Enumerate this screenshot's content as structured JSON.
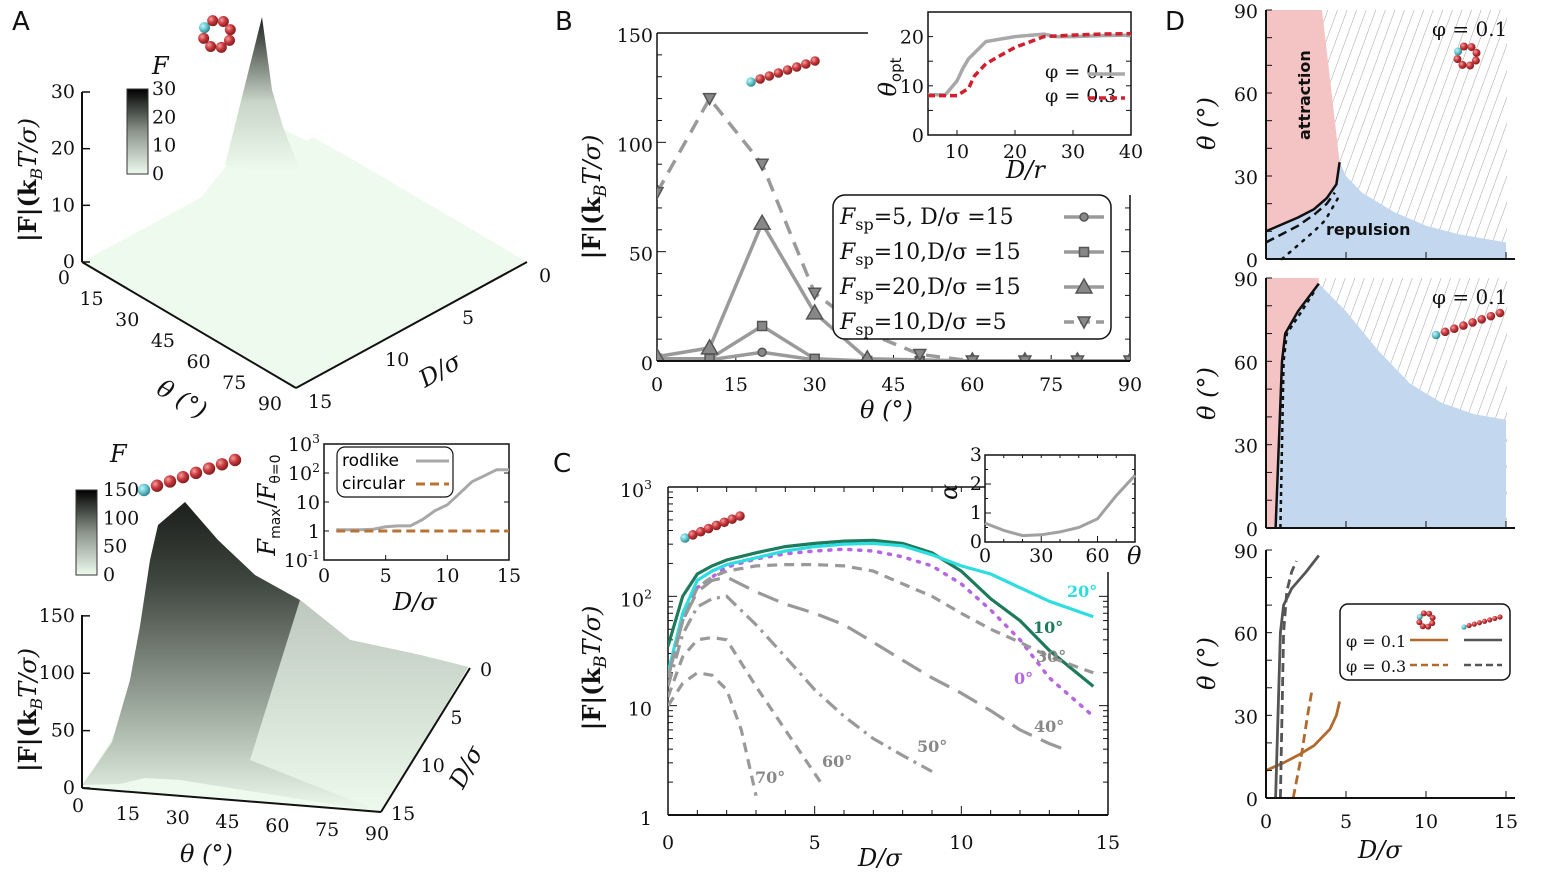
{
  "figure": {
    "panels": [
      "A",
      "B",
      "C",
      "D"
    ]
  },
  "chart_data": [
    {
      "id": "A-top",
      "type": "surface3d",
      "structure": "circular",
      "zlabel": "|F|(k_BT/σ)",
      "xlabel": "θ (°)",
      "ylabel": "D/σ",
      "x_ticks": [
        "0",
        "15",
        "30",
        "45",
        "60",
        "75",
        "90"
      ],
      "y_ticks": [
        "0",
        "5",
        "10",
        "15"
      ],
      "z_ticks": [
        "0",
        "10",
        "20",
        "30"
      ],
      "zlim": [
        0,
        30
      ],
      "colorbar": {
        "title": "F",
        "ticks": [
          "0",
          "10",
          "20",
          "30"
        ],
        "range": [
          0,
          30
        ],
        "colors": [
          "#eefaee",
          "#000000"
        ]
      },
      "peak": {
        "theta": 10,
        "D": 0,
        "F": 33
      }
    },
    {
      "id": "A-bottom",
      "type": "surface3d",
      "structure": "rodlike",
      "zlabel": "|F|(k_BT/σ)",
      "xlabel": "θ (°)",
      "ylabel": "D/σ",
      "x_ticks": [
        "0",
        "15",
        "30",
        "45",
        "60",
        "75",
        "90"
      ],
      "y_ticks": [
        "0",
        "5",
        "10",
        "15"
      ],
      "z_ticks": [
        "0",
        "50",
        "100",
        "150"
      ],
      "zlim": [
        0,
        150
      ],
      "colorbar": {
        "title": "F",
        "ticks": [
          "0",
          "50",
          "100",
          "150"
        ],
        "range": [
          0,
          150
        ],
        "colors": [
          "#eefaee",
          "#000000"
        ]
      },
      "peak": {
        "theta": 20,
        "D": 15,
        "F": 150
      }
    },
    {
      "id": "A-inset",
      "type": "line",
      "xlabel": "D/σ",
      "ylabel": "F_max / F_θ=0",
      "yscale": "log",
      "xlim": [
        0,
        15
      ],
      "ylim": [
        0.1,
        1000
      ],
      "x_ticks": [
        "0",
        "5",
        "10",
        "15"
      ],
      "y_ticks": [
        "10^-1",
        "1",
        "10",
        "10^2",
        "10^3"
      ],
      "legend": "top-left",
      "series": [
        {
          "name": "rodlike",
          "color": "#a8a8a8",
          "style": "solid",
          "x": [
            1,
            2,
            3,
            4,
            5,
            6,
            7,
            8,
            9,
            10,
            11,
            12,
            13,
            14,
            15
          ],
          "y": [
            1.1,
            1.1,
            1.1,
            1.15,
            1.4,
            1.5,
            1.5,
            2.5,
            5,
            8,
            20,
            50,
            80,
            130,
            130
          ]
        },
        {
          "name": "circular",
          "color": "#b87333",
          "style": "dashed",
          "x": [
            1,
            15
          ],
          "y": [
            1,
            1
          ]
        }
      ]
    },
    {
      "id": "B",
      "type": "line",
      "xlabel": "θ (°)",
      "ylabel": "|F|(k_BT/σ)",
      "xlim": [
        0,
        90
      ],
      "ylim": [
        0,
        150
      ],
      "x_ticks": [
        "0",
        "15",
        "30",
        "45",
        "60",
        "75",
        "90"
      ],
      "y_ticks": [
        "0",
        "50",
        "100",
        "150"
      ],
      "legend": "right",
      "x": [
        0,
        10,
        20,
        30,
        40,
        50,
        60,
        70,
        80,
        90
      ],
      "series": [
        {
          "name": "F_sp=5,  D/σ=15",
          "marker": "circle",
          "style": "solid",
          "color": "#9a9a9a",
          "values": [
            0.5,
            0.5,
            4,
            0.5,
            0,
            0,
            0,
            0,
            0,
            0
          ]
        },
        {
          "name": "F_sp=10, D/σ=15",
          "marker": "square",
          "style": "solid",
          "color": "#9a9a9a",
          "values": [
            1,
            1,
            16,
            1,
            0,
            0,
            0,
            0,
            0,
            0
          ]
        },
        {
          "name": "F_sp=20, D/σ=15",
          "marker": "triangle-up",
          "style": "solid",
          "color": "#9a9a9a",
          "values": [
            2,
            6,
            63,
            22,
            1,
            0.5,
            0,
            0,
            0,
            0
          ]
        },
        {
          "name": "F_sp=10, D/σ=5",
          "marker": "triangle-down",
          "style": "dashed",
          "color": "#9a9a9a",
          "values": [
            77,
            120,
            90,
            31,
            13,
            3,
            0,
            0,
            0,
            0
          ]
        }
      ]
    },
    {
      "id": "B-inset",
      "type": "line",
      "xlabel": "D/r",
      "ylabel": "θ_opt",
      "xlim": [
        5,
        40
      ],
      "ylim": [
        0,
        25
      ],
      "x_ticks": [
        "10",
        "20",
        "30",
        "40"
      ],
      "y_ticks": [
        "0",
        "10",
        "20"
      ],
      "legend": "right",
      "series": [
        {
          "name": "φ=0.1",
          "color": "#a8a8a8",
          "style": "solid",
          "x": [
            5,
            8,
            10,
            11,
            12,
            15,
            20,
            25,
            27,
            30,
            35,
            40
          ],
          "y": [
            8.2,
            8.2,
            11,
            13.5,
            15.5,
            19,
            20,
            20.5,
            20,
            20,
            20.2,
            20.3
          ]
        },
        {
          "name": "φ=0.3",
          "color": "#d0202d",
          "style": "dashed",
          "x": [
            5,
            8,
            10,
            12,
            13,
            15,
            18,
            20,
            25,
            30,
            35,
            40
          ],
          "y": [
            8,
            8,
            8,
            9.5,
            12,
            14.5,
            16.5,
            17.8,
            20,
            20.3,
            20.5,
            20.6
          ]
        }
      ]
    },
    {
      "id": "C",
      "type": "line",
      "xlabel": "D/σ",
      "ylabel": "|F|(k_BT/σ)",
      "xlim": [
        0,
        15
      ],
      "ylim": [
        1,
        1000
      ],
      "yscale": "log",
      "x_ticks": [
        "0",
        "5",
        "10",
        "15"
      ],
      "y_ticks": [
        "1",
        "10",
        "10^2",
        "10^3"
      ],
      "series": [
        {
          "name": "0°",
          "color": "#b566e0",
          "style": "dotted",
          "x": [
            0,
            0.5,
            1,
            1.5,
            2,
            3,
            4,
            5,
            6,
            7,
            8,
            9,
            10,
            11,
            12,
            13,
            14.5
          ],
          "y": [
            20,
            60,
            120,
            150,
            185,
            220,
            245,
            260,
            270,
            260,
            230,
            190,
            130,
            75,
            40,
            18,
            8
          ]
        },
        {
          "name": "10°",
          "color": "#1e7a5c",
          "style": "solid",
          "x": [
            0,
            0.5,
            1,
            1.5,
            2,
            3,
            4,
            5,
            6,
            7,
            8,
            9,
            10,
            11,
            12,
            13,
            14.5
          ],
          "y": [
            35,
            100,
            160,
            190,
            215,
            250,
            285,
            305,
            320,
            325,
            305,
            250,
            170,
            95,
            60,
            32,
            15
          ]
        },
        {
          "name": "20°",
          "color": "#2edde0",
          "style": "solid",
          "x": [
            0,
            0.5,
            1,
            1.5,
            2,
            3,
            4,
            5,
            6,
            7,
            8,
            9,
            10,
            11,
            12,
            13,
            14.5
          ],
          "y": [
            20,
            70,
            140,
            170,
            195,
            225,
            260,
            285,
            300,
            305,
            290,
            240,
            190,
            160,
            120,
            90,
            65
          ]
        },
        {
          "name": "30°",
          "color": "#999999",
          "style": "dashed",
          "x": [
            0,
            0.5,
            1,
            1.5,
            2,
            3,
            4,
            5,
            6,
            7,
            8,
            9,
            10,
            11,
            12,
            13,
            14.5
          ],
          "y": [
            18,
            60,
            120,
            150,
            170,
            190,
            195,
            195,
            190,
            170,
            130,
            100,
            70,
            50,
            38,
            28,
            20
          ]
        },
        {
          "name": "40°",
          "color": "#999999",
          "style": "long-dashed",
          "x": [
            0,
            0.5,
            1,
            1.5,
            2,
            3,
            4,
            5,
            6,
            7,
            8,
            9,
            10,
            11,
            12,
            13,
            13.5
          ],
          "y": [
            18,
            60,
            110,
            140,
            150,
            110,
            85,
            70,
            55,
            38,
            26,
            18,
            13,
            9,
            6,
            4.5,
            4
          ]
        },
        {
          "name": "50°",
          "color": "#999999",
          "style": "dash-dot",
          "x": [
            0,
            0.5,
            1,
            1.5,
            2,
            3,
            4,
            5,
            6,
            7,
            8,
            9
          ],
          "y": [
            15,
            45,
            80,
            95,
            100,
            55,
            28,
            14,
            8,
            5,
            3.5,
            2.5
          ]
        },
        {
          "name": "60°",
          "color": "#999999",
          "style": "dashed",
          "x": [
            0,
            0.5,
            1,
            1.5,
            2,
            3,
            4,
            5.2
          ],
          "y": [
            12,
            28,
            40,
            42,
            40,
            15,
            6,
            2
          ]
        },
        {
          "name": "70°",
          "color": "#999999",
          "style": "dashed",
          "x": [
            0,
            0.5,
            1,
            1.5,
            2,
            2.5,
            3
          ],
          "y": [
            10,
            16,
            20,
            19,
            14,
            6,
            1.5
          ]
        }
      ],
      "annotations": [
        "20°",
        "10°",
        "30°",
        "0°",
        "40°",
        "50°",
        "60°",
        "70°"
      ]
    },
    {
      "id": "C-inset",
      "type": "line",
      "xlabel": "θ",
      "ylabel": "α",
      "xlim": [
        0,
        80
      ],
      "ylim": [
        0,
        3
      ],
      "x_ticks": [
        "0",
        "30",
        "60"
      ],
      "y_ticks": [
        "0",
        "1",
        "2",
        "3"
      ],
      "series": [
        {
          "name": "α",
          "color": "#a0a0a0",
          "style": "solid",
          "x": [
            0,
            10,
            20,
            30,
            40,
            50,
            60,
            70,
            80
          ],
          "y": [
            0.65,
            0.4,
            0.22,
            0.25,
            0.35,
            0.5,
            0.8,
            1.6,
            2.3
          ]
        }
      ]
    },
    {
      "id": "D-top",
      "type": "area",
      "title": "φ=0.1",
      "structure": "circular",
      "xlabel": "",
      "ylabel": "θ (°)",
      "xlim": [
        0,
        15
      ],
      "ylim": [
        0,
        90
      ],
      "y_ticks": [
        "0",
        "30",
        "60",
        "90"
      ],
      "regions": {
        "attraction": "#f4c3c3",
        "repulsion": "#c3d8ef",
        "hatched": "#999999"
      },
      "labels": [
        "attraction",
        "repulsion"
      ],
      "boundary": {
        "solid": {
          "x": [
            0,
            1,
            2,
            3,
            3.8,
            4.4,
            4.6
          ],
          "y": [
            10,
            12.5,
            15,
            18,
            22,
            27,
            35
          ]
        },
        "dashed": {
          "x": [
            0,
            1,
            2,
            3,
            3.8,
            4.3
          ],
          "y": [
            6,
            9,
            12,
            16,
            20,
            24
          ]
        },
        "dotted": {
          "x": [
            1,
            2,
            3,
            3.7,
            4.1,
            4.5
          ],
          "y": [
            0,
            5,
            10,
            14,
            18,
            22
          ]
        }
      },
      "repulsion_upper": {
        "x": [
          4.6,
          5,
          6,
          8,
          10,
          12,
          14,
          15
        ],
        "y": [
          35,
          30,
          24,
          17,
          12,
          9,
          7,
          6
        ]
      },
      "attraction_right": {
        "x": [
          3.5,
          3.8,
          4.1,
          4.4,
          4.6
        ],
        "y": [
          90,
          75,
          60,
          45,
          35
        ]
      }
    },
    {
      "id": "D-mid",
      "type": "area",
      "title": "φ=0.1",
      "structure": "rodlike",
      "ylabel": "θ (°)",
      "xlim": [
        0,
        15
      ],
      "ylim": [
        0,
        90
      ],
      "y_ticks": [
        "0",
        "30",
        "60",
        "90"
      ],
      "boundary": {
        "solid": {
          "x": [
            0.6,
            0.7,
            0.8,
            0.9,
            1.0,
            1.2,
            2,
            3.3
          ],
          "y": [
            0,
            15,
            30,
            45,
            60,
            70,
            78,
            88
          ]
        },
        "dashed": {
          "x": [
            0.9,
            1.0,
            1.1,
            1.3,
            2.0,
            3.0
          ],
          "y": [
            0,
            30,
            60,
            70,
            76,
            85
          ]
        }
      },
      "repulsion_upper": {
        "x": [
          3.3,
          5,
          7,
          9,
          11,
          13,
          15
        ],
        "y": [
          88,
          78,
          64,
          52,
          45,
          41,
          39
        ]
      }
    },
    {
      "id": "D-bottom",
      "type": "line",
      "xlabel": "D/σ",
      "ylabel": "θ (°)",
      "xlim": [
        0,
        15
      ],
      "ylim": [
        0,
        90
      ],
      "x_ticks": [
        "0",
        "5",
        "10",
        "15"
      ],
      "y_ticks": [
        "0",
        "30",
        "60",
        "90"
      ],
      "legend": "right",
      "series": [
        {
          "name": "φ=0.1 circular",
          "color": "#b06a2e",
          "style": "solid",
          "x": [
            0,
            1,
            2,
            3,
            4,
            4.4,
            4.6
          ],
          "y": [
            10,
            12.5,
            15.5,
            19,
            25,
            30,
            35
          ]
        },
        {
          "name": "φ=0.3 circular",
          "color": "#b06a2e",
          "style": "dashed",
          "x": [
            1.7,
            2.2,
            2.6,
            2.9
          ],
          "y": [
            0,
            15,
            30,
            40
          ]
        },
        {
          "name": "φ=0.1 rodlike",
          "color": "#555555",
          "style": "solid",
          "x": [
            0.6,
            0.7,
            0.8,
            0.9,
            1.1,
            1.6,
            2.5,
            3.3
          ],
          "y": [
            0,
            20,
            40,
            60,
            70,
            76,
            82,
            88
          ]
        },
        {
          "name": "φ=0.3 rodlike",
          "color": "#555555",
          "style": "dashed",
          "x": [
            0.9,
            1.0,
            1.1,
            1.3,
            1.6,
            1.9
          ],
          "y": [
            0,
            30,
            60,
            75,
            82,
            86
          ]
        }
      ]
    }
  ],
  "text": {
    "A": "A",
    "B": "B",
    "C": "C",
    "D": "D",
    "F": "F",
    "absF": "|F|(k",
    "B_sub": "B",
    "Tsigma": "T/σ)",
    "theta_deg": "θ (°)",
    "theta_deg_o": "θ (°)",
    "D_sigma": "D/σ",
    "D_r": "D/r",
    "theta_opt": "θ",
    "opt_sub": "opt",
    "alpha": "α",
    "theta": "θ",
    "Fmax": "F",
    "max_sub": "max",
    "slash": "/",
    "Ftheta": "F",
    "theta0_sub": "θ=0",
    "rodlike": "rodlike",
    "circular": "circular",
    "phi01": "φ = 0.1",
    "phi03": "φ = 0.3",
    "attraction": "attraction",
    "repulsion": "repulsion",
    "leg_B": [
      {
        "pre": "F",
        "sub": "sp",
        "post": "=5,  D/σ =15"
      },
      {
        "pre": "F",
        "sub": "sp",
        "post": "=10,D/σ =15"
      },
      {
        "pre": "F",
        "sub": "sp",
        "post": "=20,D/σ =15"
      },
      {
        "pre": "F",
        "sub": "sp",
        "post": "=10,D/σ =5"
      }
    ],
    "C_labels": {
      "a20": "20°",
      "a10": "10°",
      "a30": "30°",
      "a0": "0°",
      "a40": "40°",
      "a50": "50°",
      "a60": "60°",
      "a70": "70°"
    }
  },
  "colors": {
    "rod_red": "#c8373b",
    "rod_head": "#66c8d0",
    "surface_light": "#eefaee",
    "surface_dark": "#1a1d1a"
  }
}
